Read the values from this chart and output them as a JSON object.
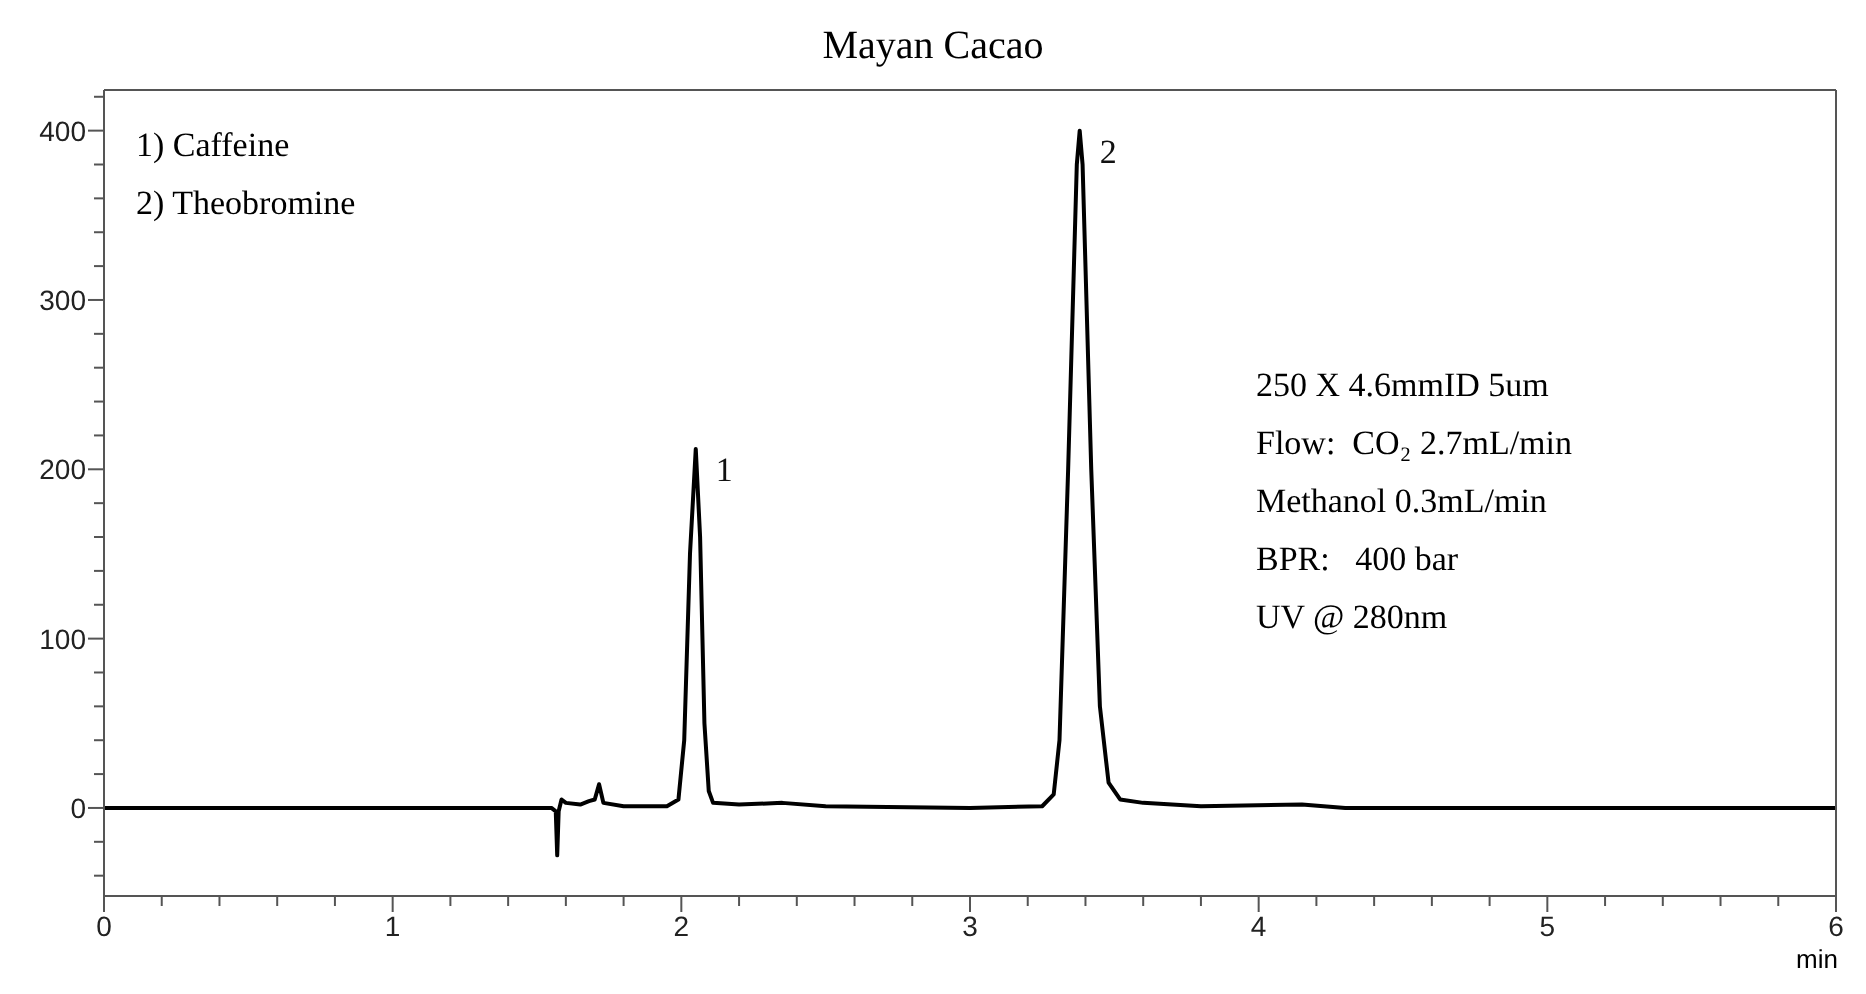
{
  "chart_data": {
    "type": "line",
    "title": "Mayan Cacao",
    "xlabel": "min",
    "x": [
      0,
      1.55,
      1.565,
      1.57,
      1.575,
      1.585,
      1.6,
      1.65,
      1.68,
      1.7,
      1.715,
      1.73,
      1.8,
      1.95,
      1.99,
      2.01,
      2.03,
      2.05,
      2.065,
      2.08,
      2.095,
      2.11,
      2.2,
      2.35,
      2.5,
      3.0,
      3.25,
      3.29,
      3.31,
      3.34,
      3.37,
      3.38,
      3.39,
      3.42,
      3.45,
      3.48,
      3.52,
      3.6,
      3.8,
      4.15,
      4.3,
      6
    ],
    "series": [
      {
        "color": "#000000",
        "values": [
          0,
          0,
          -2,
          -28,
          -2,
          5,
          3,
          2,
          4,
          5,
          14,
          3,
          1,
          1,
          5,
          40,
          150,
          212,
          160,
          50,
          10,
          3,
          2,
          3,
          1,
          0,
          1,
          8,
          40,
          200,
          380,
          400,
          380,
          200,
          60,
          15,
          5,
          3,
          1,
          2,
          0,
          0
        ]
      }
    ],
    "xlim": [
      0,
      6
    ],
    "xticks": [
      0,
      {
        "value": 0.2,
        "label": null
      },
      {
        "value": 0.4,
        "label": null
      },
      {
        "value": 0.6,
        "label": null
      },
      {
        "value": 0.8,
        "label": null
      },
      1,
      {
        "value": 1.2,
        "label": null
      },
      {
        "value": 1.4,
        "label": null
      },
      {
        "value": 1.6,
        "label": null
      },
      {
        "value": 1.8,
        "label": null
      },
      2,
      {
        "value": 2.2,
        "label": null
      },
      {
        "value": 2.4,
        "label": null
      },
      {
        "value": 2.6,
        "label": null
      },
      {
        "value": 2.8,
        "label": null
      },
      3,
      {
        "value": 3.2,
        "label": null
      },
      {
        "value": 3.4,
        "label": null
      },
      {
        "value": 3.6,
        "label": null
      },
      {
        "value": 3.8,
        "label": null
      },
      4,
      {
        "value": 4.2,
        "label": null
      },
      {
        "value": 4.4,
        "label": null
      },
      {
        "value": 4.6,
        "label": null
      },
      {
        "value": 4.8,
        "label": null
      },
      5,
      {
        "value": 5.2,
        "label": null
      },
      {
        "value": 5.4,
        "label": null
      },
      {
        "value": 5.6,
        "label": null
      },
      {
        "value": 5.8,
        "label": null
      },
      6
    ],
    "ylim": [
      -52,
      424
    ],
    "yticks": [
      {
        "value": -40,
        "label": null
      },
      {
        "value": -20,
        "label": null
      },
      0,
      {
        "value": 20,
        "label": null
      },
      {
        "value": 40,
        "label": null
      },
      {
        "value": 60,
        "label": null
      },
      {
        "value": 80,
        "label": null
      },
      100,
      {
        "value": 120,
        "label": null
      },
      {
        "value": 140,
        "label": null
      },
      {
        "value": 160,
        "label": null
      },
      {
        "value": 180,
        "label": null
      },
      200,
      {
        "value": 220,
        "label": null
      },
      {
        "value": 240,
        "label": null
      },
      {
        "value": 260,
        "label": null
      },
      {
        "value": 280,
        "label": null
      },
      300,
      {
        "value": 320,
        "label": null
      },
      {
        "value": 340,
        "label": null
      },
      {
        "value": 360,
        "label": null
      },
      {
        "value": 380,
        "label": null
      },
      400,
      {
        "value": 420,
        "label": null
      }
    ],
    "marker": "none",
    "line_style": "solid",
    "annotations": [
      {
        "text": "1",
        "x": 2.05,
        "y": 212
      },
      {
        "text": "2",
        "x": 3.38,
        "y": 400
      },
      "1) Caffeine",
      "2) Theobromine",
      "250 X 4.6mmID 5um",
      "Flow:  CO₂ 2.7mL/min",
      "Methanol 0.3mL/min",
      "BPR:   400 bar",
      "UV @ 280nm"
    ]
  }
}
